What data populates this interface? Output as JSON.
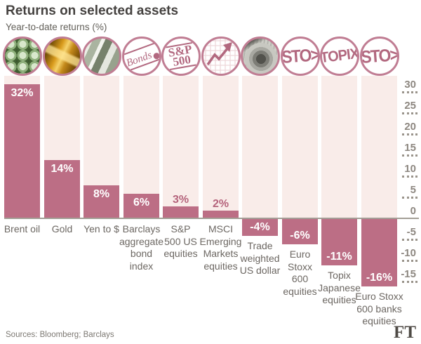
{
  "title": "Returns on selected assets",
  "subtitle": "Year-to-date returns (%)",
  "source": "Sources: Bloomberg; Barclays",
  "logo": "FT",
  "colors": {
    "bar": "#bc6e85",
    "column_bg": "#f9ece9",
    "icon_ring": "#c07d93",
    "icon_ink": "#b2687f",
    "value_text_on_bar": "#ffffff",
    "value_text_small": "#b5647c",
    "baseline": "#a39e96",
    "tick_text": "#8d8780",
    "background": "#ffffff"
  },
  "icon_text": {
    "sp500": "S&P\n500",
    "stoxx": "STO>",
    "topix": "TOPIX",
    "bonds": "Bonds"
  },
  "chart_data": {
    "type": "bar",
    "title": "Returns on selected assets",
    "ylabel": "Year-to-date returns (%)",
    "categories": [
      "Brent oil",
      "Gold",
      "Yen to $",
      "Barclays aggregate bond index",
      "S&P 500 US equities",
      "MSCI Emerging Markets equities",
      "Trade weighted US dollar",
      "Euro Stoxx 600 equities",
      "Topix Japanese equities",
      "Euro Stoxx 600 banks equities"
    ],
    "label_lines": [
      "Brent oil",
      "Gold",
      "Yen to $",
      "Barclays\naggregate\nbond\nindex",
      "S&P\n500 US\nequities",
      "MSCI\nEmerging\nMarkets\nequities",
      "Trade\nweighted\nUS dollar",
      "Euro\nStoxx\n600\nequities",
      "Topix\nJapanese\nequities",
      "Euro Stoxx\n600 banks\nequities"
    ],
    "values": [
      32,
      14,
      8,
      6,
      3,
      2,
      -4,
      -6,
      -11,
      -16
    ],
    "value_labels": [
      "32%",
      "14%",
      "8%",
      "6%",
      "3%",
      "2%",
      "-4%",
      "-6%",
      "-11%",
      "-16%"
    ],
    "icons": [
      "oil-barrels",
      "gold-bars",
      "banknotes",
      "bonds-certificate",
      "sp-500-badge",
      "rising-chart",
      "dollar-bill",
      "stoxx-logo",
      "topix-logo",
      "stoxx-logo"
    ],
    "yticks": [
      30,
      25,
      20,
      15,
      10,
      5,
      0,
      -5,
      -10,
      -15
    ],
    "ylim": [
      -18,
      34
    ],
    "grid": "dotted right-edge tick marks, solid zero baseline",
    "legend": "none"
  }
}
